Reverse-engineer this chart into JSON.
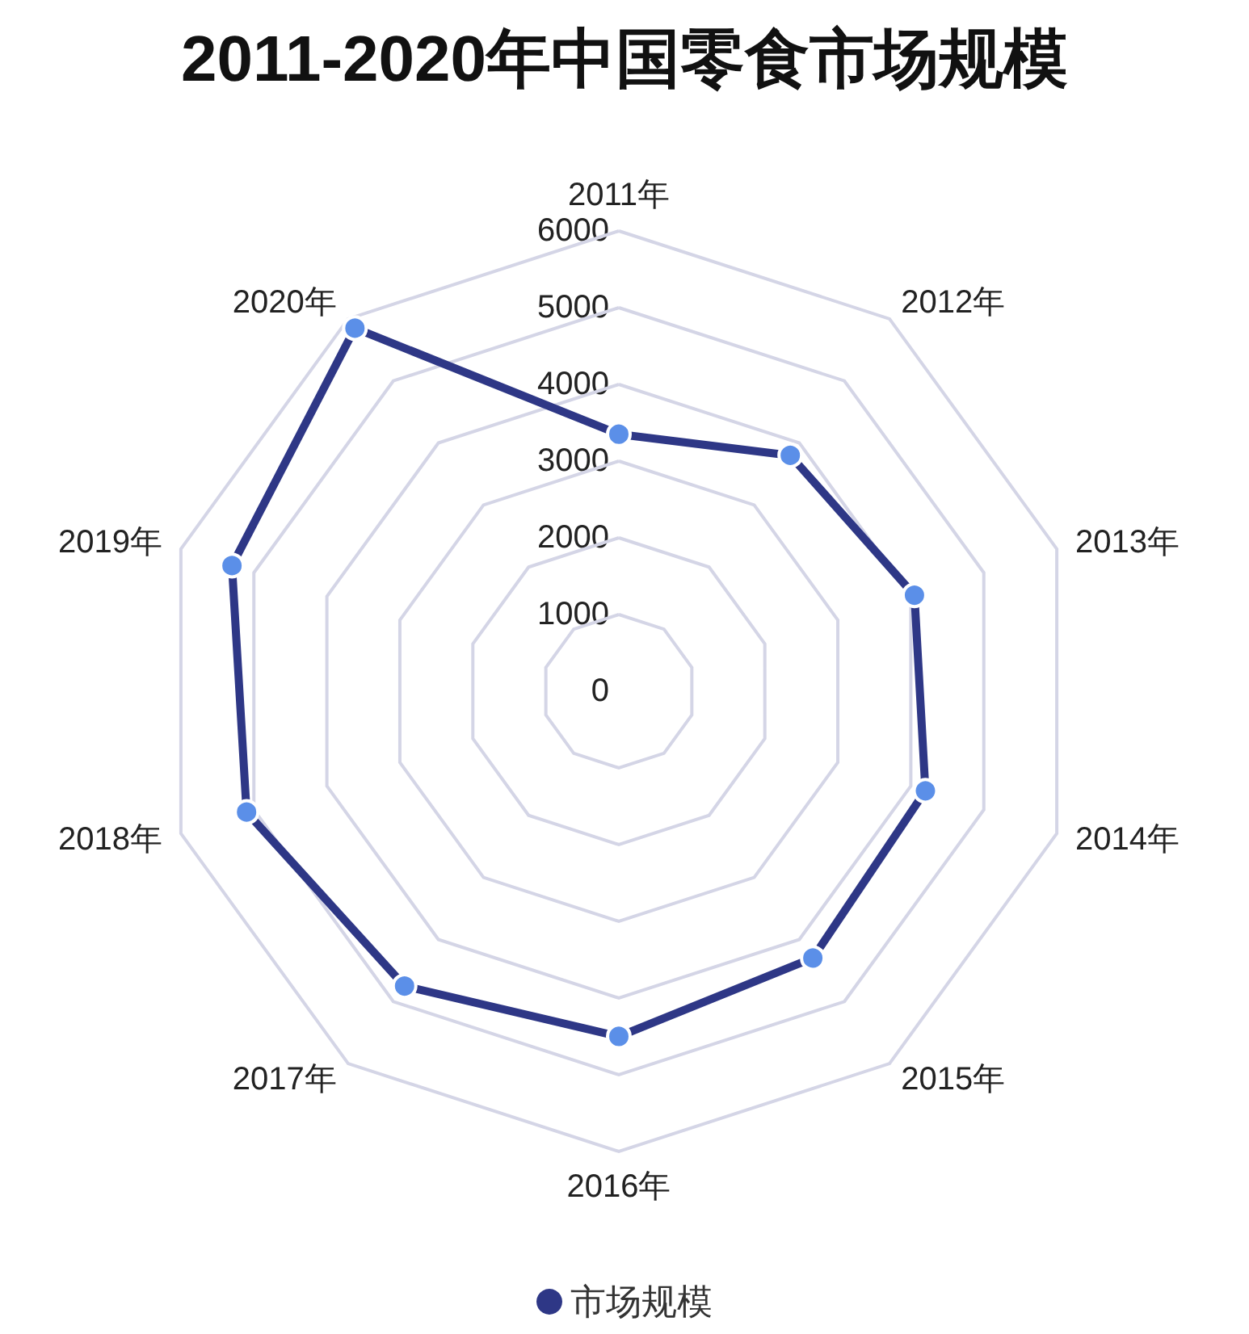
{
  "chart_data": {
    "type": "radar",
    "title": "2011-2020年中国零食市场规模",
    "categories": [
      "2011年",
      "2012年",
      "2013年",
      "2014年",
      "2015年",
      "2016年",
      "2017年",
      "2018年",
      "2019年",
      "2020年"
    ],
    "series": [
      {
        "name": "市场规模",
        "color": "#2e3786",
        "values": [
          3350,
          3800,
          4050,
          4200,
          4300,
          4500,
          4750,
          5100,
          5300,
          5850
        ]
      }
    ],
    "ylim": [
      0,
      6000
    ],
    "yticks": [
      0,
      1000,
      2000,
      3000,
      4000,
      5000,
      6000
    ],
    "grid": true,
    "legend": "bottom",
    "marker": "circle",
    "line_style": "solid"
  }
}
